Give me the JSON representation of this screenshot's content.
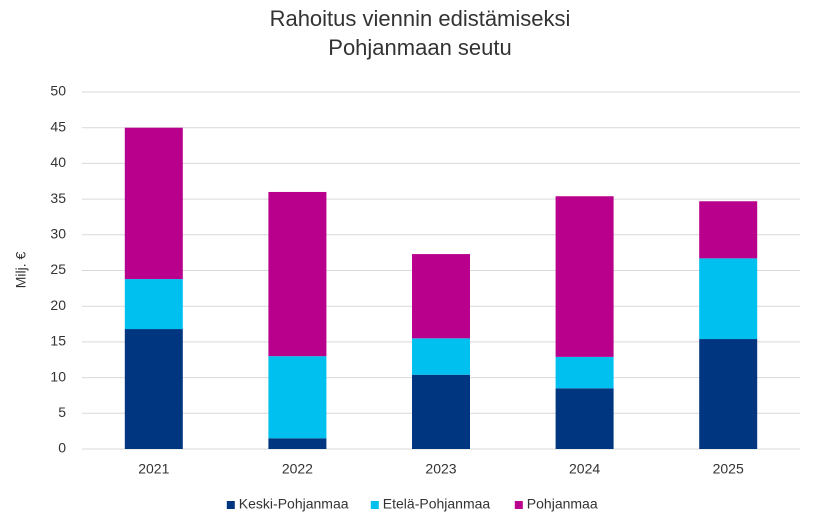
{
  "chart_data": {
    "type": "bar",
    "stacked": true,
    "title": "Rahoitus viennin edistämiseksi",
    "subtitle": "Pohjanmaan seutu",
    "y_label": "Milj. €",
    "categories": [
      "2021",
      "2022",
      "2023",
      "2024",
      "2025"
    ],
    "series": [
      {
        "name": "Keski-Pohjanmaa",
        "color": "#003580",
        "values": [
          16.8,
          1.5,
          10.4,
          8.5,
          15.4
        ]
      },
      {
        "name": "Etelä-Pohjanmaa",
        "color": "#00c0f0",
        "values": [
          7.0,
          11.5,
          5.1,
          4.4,
          11.3
        ]
      },
      {
        "name": "Pohjanmaa",
        "color": "#b8008c",
        "values": [
          21.2,
          23.0,
          11.8,
          22.5,
          8.0
        ]
      }
    ],
    "ylim": [
      0,
      50
    ],
    "yticks": [
      0,
      5,
      10,
      15,
      20,
      25,
      30,
      35,
      40,
      45,
      50
    ],
    "grid": true,
    "legend": "bottom"
  }
}
